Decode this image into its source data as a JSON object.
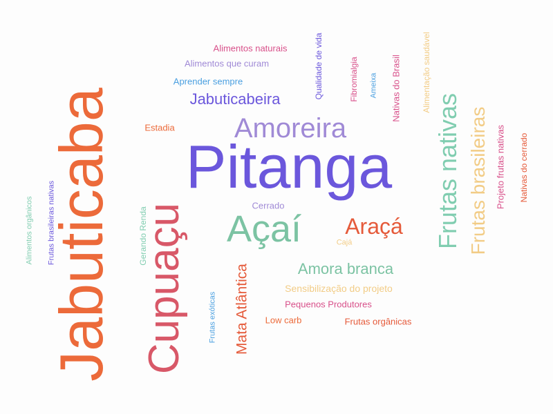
{
  "words": [
    {
      "text": "Jabuticaba",
      "color": "#ec6a3a"
    },
    {
      "text": "Pitanga",
      "color": "#6b57dc"
    },
    {
      "text": "Açaí",
      "color": "#7cc3a3"
    },
    {
      "text": "Cupuaçu",
      "color": "#d85868"
    },
    {
      "text": "Amoreira",
      "color": "#a08ad6"
    },
    {
      "text": "Frutas nativas",
      "color": "#80cdb0"
    },
    {
      "text": "Frutas brasileiras",
      "color": "#f2cc86"
    },
    {
      "text": "Jabuticabeira",
      "color": "#6b57dc"
    },
    {
      "text": "Araçá",
      "color": "#e55a3a"
    },
    {
      "text": "Amora branca",
      "color": "#7cc3a3"
    },
    {
      "text": "Mata Atlântica",
      "color": "#e55a3a"
    },
    {
      "text": "Alimentos naturais",
      "color": "#d8508a"
    },
    {
      "text": "Alimentos que curam",
      "color": "#a08ad6"
    },
    {
      "text": "Aprender sempre",
      "color": "#4a9fe0"
    },
    {
      "text": "Qualidade de vida",
      "color": "#6b57dc"
    },
    {
      "text": "Fibromialgia",
      "color": "#d8508a"
    },
    {
      "text": "Ameixa",
      "color": "#4a9fe0"
    },
    {
      "text": "Nativas do Brasil",
      "color": "#d8508a"
    },
    {
      "text": "Alimentação saudável",
      "color": "#f2cc86"
    },
    {
      "text": "Projeto frutas nativas",
      "color": "#d8508a"
    },
    {
      "text": "Nativas do cerrado",
      "color": "#e55a3a"
    },
    {
      "text": "Estadia",
      "color": "#ec6a3a"
    },
    {
      "text": "Cerrado",
      "color": "#a08ad6"
    },
    {
      "text": "Cajá",
      "color": "#f2cc86"
    },
    {
      "text": "Sensibilização do projeto",
      "color": "#f2cc86"
    },
    {
      "text": "Pequenos Produtores",
      "color": "#d8508a"
    },
    {
      "text": "Low carb",
      "color": "#ec6a3a"
    },
    {
      "text": "Frutas orgânicas",
      "color": "#e55a3a"
    },
    {
      "text": "Frutas exóticas",
      "color": "#4a9fe0"
    },
    {
      "text": "Gerando Renda",
      "color": "#80cdb0"
    },
    {
      "text": "Alimentos orgânicos",
      "color": "#80cdb0"
    },
    {
      "text": "Frutas brasileiras nativas",
      "color": "#6b57dc"
    }
  ]
}
